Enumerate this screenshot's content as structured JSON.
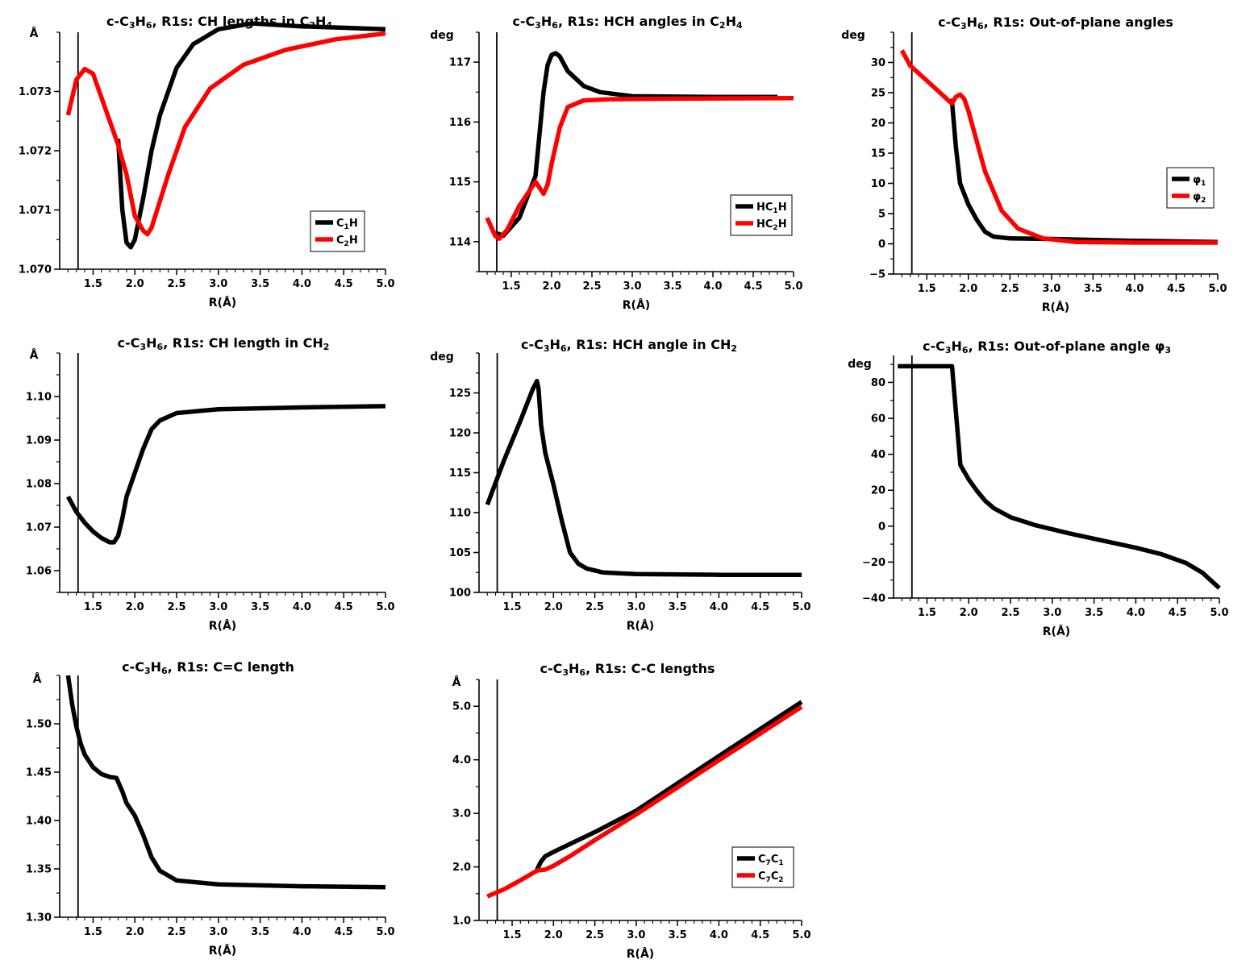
{
  "colors": {
    "black": "#000000",
    "red": "#ff0000"
  },
  "chart_data": [
    {
      "type": "line",
      "title": "c-C3H6, R1s: CH lengths in C2H4",
      "title_parts": [
        "c-C",
        "3",
        "H",
        "6",
        ", R1s: CH lengths in C",
        "2",
        "H",
        "4"
      ],
      "ylabel": "Å",
      "xlabel": "R(Å)",
      "xlim": [
        1.1,
        5.0
      ],
      "ylim": [
        1.07,
        1.074
      ],
      "xticks": [
        "1.5",
        "2.0",
        "2.5",
        "3.0",
        "3.5",
        "4.0",
        "4.5",
        "5.0"
      ],
      "xtick_values": [
        1.5,
        2.0,
        2.5,
        3.0,
        3.5,
        4.0,
        4.5,
        5.0
      ],
      "yticks": [
        "1.070",
        "1.071",
        "1.072",
        "1.073"
      ],
      "ytick_values": [
        1.07,
        1.071,
        1.072,
        1.073
      ],
      "vline": 1.32,
      "legend": {
        "position": "lower-right",
        "entries": [
          {
            "parts": [
              "C",
              "1",
              "H"
            ],
            "color": "#000000"
          },
          {
            "parts": [
              "C",
              "2",
              "H"
            ],
            "color": "#ff0000"
          }
        ]
      },
      "series": [
        {
          "color": "#000000",
          "x": [
            1.8,
            1.85,
            1.9,
            1.95,
            2.0,
            2.1,
            2.2,
            2.3,
            2.5,
            2.7,
            3.0,
            3.4,
            4.0,
            5.0
          ],
          "y": [
            1.0722,
            1.071,
            1.07045,
            1.07037,
            1.0705,
            1.0712,
            1.072,
            1.0726,
            1.0734,
            1.0738,
            1.07405,
            1.07415,
            1.0741,
            1.07405
          ]
        },
        {
          "color": "#ff0000",
          "x": [
            1.2,
            1.3,
            1.4,
            1.5,
            1.6,
            1.8,
            1.9,
            2.0,
            2.1,
            2.15,
            2.2,
            2.4,
            2.6,
            2.9,
            3.3,
            3.8,
            4.4,
            5.0
          ],
          "y": [
            1.0726,
            1.0732,
            1.07338,
            1.0733,
            1.0729,
            1.0721,
            1.0716,
            1.0709,
            1.07065,
            1.07059,
            1.0707,
            1.0716,
            1.0724,
            1.07305,
            1.07345,
            1.0737,
            1.07388,
            1.07398
          ]
        }
      ]
    },
    {
      "type": "line",
      "title": "c-C3H6, R1s: HCH angles in C2H4",
      "title_parts": [
        "c-C",
        "3",
        "H",
        "6",
        ", R1s: HCH angles in C",
        "2",
        "H",
        "4"
      ],
      "ylabel": "deg",
      "xlabel": "R(Å)",
      "xlim": [
        1.1,
        5.0
      ],
      "ylim": [
        113.5,
        117.5
      ],
      "xticks": [
        "1.5",
        "2.0",
        "2.5",
        "3.0",
        "3.5",
        "4.0",
        "4.5",
        "5.0"
      ],
      "xtick_values": [
        1.5,
        2.0,
        2.5,
        3.0,
        3.5,
        4.0,
        4.5,
        5.0
      ],
      "yticks": [
        "114",
        "115",
        "116",
        "117"
      ],
      "ytick_values": [
        114,
        115,
        116,
        117
      ],
      "vline": 1.32,
      "legend": {
        "position": "lower-right",
        "entries": [
          {
            "parts": [
              "HC",
              "1",
              "H"
            ],
            "color": "#000000"
          },
          {
            "parts": [
              "HC",
              "2",
              "H"
            ],
            "color": "#ff0000"
          }
        ]
      },
      "series": [
        {
          "color": "#000000",
          "x": [
            1.3,
            1.4,
            1.6,
            1.8,
            1.85,
            1.9,
            1.95,
            2.0,
            2.05,
            2.1,
            2.2,
            2.4,
            2.6,
            3.0,
            4.0,
            4.8
          ],
          "y": [
            114.15,
            114.1,
            114.4,
            115.1,
            115.8,
            116.5,
            116.95,
            117.12,
            117.15,
            117.1,
            116.85,
            116.6,
            116.5,
            116.43,
            116.42,
            116.42
          ]
        },
        {
          "color": "#ff0000",
          "x": [
            1.2,
            1.3,
            1.35,
            1.45,
            1.6,
            1.8,
            1.85,
            1.9,
            1.95,
            2.0,
            2.1,
            2.2,
            2.4,
            2.7,
            3.5,
            5.0
          ],
          "y": [
            114.4,
            114.1,
            114.05,
            114.2,
            114.6,
            115.0,
            114.9,
            114.8,
            114.95,
            115.3,
            115.9,
            116.25,
            116.36,
            116.38,
            116.39,
            116.4
          ]
        }
      ]
    },
    {
      "type": "line",
      "title": "c-C3H6, R1s: Out-of-plane angles",
      "title_parts": [
        "c-C",
        "3",
        "H",
        "6",
        ", R1s: Out-of-plane angles"
      ],
      "ylabel": "deg",
      "xlabel": "R(Å)",
      "xlim": [
        1.1,
        5.0
      ],
      "ylim": [
        -5,
        35
      ],
      "xticks": [
        "1.5",
        "2.0",
        "2.5",
        "3.0",
        "3.5",
        "4.0",
        "4.5",
        "5.0"
      ],
      "xtick_values": [
        1.5,
        2.0,
        2.5,
        3.0,
        3.5,
        4.0,
        4.5,
        5.0
      ],
      "yticks": [
        "−5",
        "0",
        "5",
        "10",
        "15",
        "20",
        "25",
        "30"
      ],
      "ytick_values": [
        -5,
        0,
        5,
        10,
        15,
        20,
        25,
        30
      ],
      "vline": 1.32,
      "legend": {
        "position": "middle-right",
        "entries": [
          {
            "parts": [
              "φ",
              "1"
            ],
            "color": "#000000"
          },
          {
            "parts": [
              "φ",
              "2"
            ],
            "color": "#ff0000"
          }
        ]
      },
      "series": [
        {
          "color": "#000000",
          "x": [
            1.8,
            1.85,
            1.9,
            2.0,
            2.1,
            2.2,
            2.3,
            2.5,
            3.0,
            4.0,
            5.0
          ],
          "y": [
            24,
            16,
            10,
            6.5,
            4,
            2,
            1.2,
            0.9,
            0.8,
            0.5,
            0.3
          ]
        },
        {
          "color": "#ff0000",
          "x": [
            1.2,
            1.3,
            1.5,
            1.7,
            1.8,
            1.85,
            1.9,
            1.95,
            2.0,
            2.1,
            2.2,
            2.4,
            2.6,
            2.9,
            3.3,
            4.0,
            5.0
          ],
          "y": [
            32,
            29.5,
            27,
            24.5,
            23.2,
            24.3,
            24.7,
            24.0,
            22.0,
            17.0,
            12.0,
            5.5,
            2.5,
            0.9,
            0.3,
            0.2,
            0.2
          ]
        }
      ]
    },
    {
      "type": "line",
      "title": "c-C3H6, R1s: CH length in CH2",
      "title_parts": [
        "c-C",
        "3",
        "H",
        "6",
        ", R1s: CH length in CH",
        "2"
      ],
      "ylabel": "Å",
      "xlabel": "R(Å)",
      "xlim": [
        1.1,
        5.0
      ],
      "ylim": [
        1.055,
        1.11
      ],
      "xticks": [
        "1.5",
        "2.0",
        "2.5",
        "3.0",
        "3.5",
        "4.0",
        "4.5",
        "5.0"
      ],
      "xtick_values": [
        1.5,
        2.0,
        2.5,
        3.0,
        3.5,
        4.0,
        4.5,
        5.0
      ],
      "yticks": [
        "1.06",
        "1.07",
        "1.08",
        "1.09",
        "1.10"
      ],
      "ytick_values": [
        1.06,
        1.07,
        1.08,
        1.09,
        1.1
      ],
      "vline": 1.32,
      "legend": null,
      "series": [
        {
          "color": "#000000",
          "x": [
            1.2,
            1.3,
            1.4,
            1.5,
            1.6,
            1.7,
            1.75,
            1.8,
            1.85,
            1.9,
            2.0,
            2.1,
            2.2,
            2.3,
            2.5,
            3.0,
            4.0,
            5.0
          ],
          "y": [
            1.077,
            1.0735,
            1.071,
            1.069,
            1.0675,
            1.0665,
            1.0665,
            1.068,
            1.072,
            1.077,
            1.0825,
            1.088,
            1.0925,
            1.0945,
            1.0962,
            1.0971,
            1.0975,
            1.0978
          ]
        }
      ]
    },
    {
      "type": "line",
      "title": "c-C3H6, R1s: HCH angle in CH2",
      "title_parts": [
        "c-C",
        "3",
        "H",
        "6",
        ", R1s: HCH angle in CH",
        "2"
      ],
      "ylabel": "deg",
      "xlabel": "R(Å)",
      "xlim": [
        1.1,
        5.0
      ],
      "ylim": [
        100,
        130
      ],
      "xticks": [
        "1.5",
        "2.0",
        "2.5",
        "3.0",
        "3.5",
        "4.0",
        "4.5",
        "5.0"
      ],
      "xtick_values": [
        1.5,
        2.0,
        2.5,
        3.0,
        3.5,
        4.0,
        4.5,
        5.0
      ],
      "yticks": [
        "100",
        "105",
        "110",
        "115",
        "120",
        "125"
      ],
      "ytick_values": [
        100,
        105,
        110,
        115,
        120,
        125
      ],
      "vline": 1.32,
      "legend": null,
      "series": [
        {
          "color": "#000000",
          "x": [
            1.2,
            1.4,
            1.6,
            1.75,
            1.8,
            1.82,
            1.85,
            1.9,
            2.0,
            2.1,
            2.2,
            2.3,
            2.4,
            2.6,
            3.0,
            4.0,
            5.0
          ],
          "y": [
            111,
            116.5,
            121.5,
            125.5,
            126.5,
            125.5,
            121,
            117.5,
            113.5,
            109,
            105,
            103.6,
            103,
            102.5,
            102.3,
            102.2,
            102.2
          ]
        }
      ]
    },
    {
      "type": "line",
      "title": "c-C3H6, R1s: Out-of-plane angle φ3",
      "title_parts": [
        "c-C",
        "3",
        "H",
        "6",
        ", R1s: Out-of-plane angle φ",
        "3"
      ],
      "ylabel": "deg",
      "xlabel": "R(Å)",
      "xlim": [
        1.1,
        5.0
      ],
      "ylim": [
        -40,
        95
      ],
      "xticks": [
        "1.5",
        "2.0",
        "2.5",
        "3.0",
        "3.5",
        "4.0",
        "4.5",
        "5.0"
      ],
      "xtick_values": [
        1.5,
        2.0,
        2.5,
        3.0,
        3.5,
        4.0,
        4.5,
        5.0
      ],
      "yticks": [
        "−40",
        "−20",
        "0",
        "20",
        "40",
        "60",
        "80"
      ],
      "ytick_values": [
        -40,
        -20,
        0,
        20,
        40,
        60,
        80
      ],
      "vline": 1.32,
      "legend": null,
      "series": [
        {
          "color": "#000000",
          "x": [
            1.15,
            1.3,
            1.5,
            1.7,
            1.8,
            1.9,
            2.0,
            2.1,
            2.2,
            2.3,
            2.5,
            2.8,
            3.2,
            3.6,
            4.0,
            4.3,
            4.6,
            4.8,
            5.0
          ],
          "y": [
            89,
            89,
            89,
            89,
            89,
            34,
            26,
            19.5,
            14,
            10,
            5,
            0.5,
            -4,
            -8,
            -12,
            -15.5,
            -20.5,
            -26,
            -34.5
          ]
        }
      ]
    },
    {
      "type": "line",
      "title": "c-C3H6, R1s: C=C length",
      "title_parts": [
        "c-C",
        "3",
        "H",
        "6",
        ", R1s: C=C length"
      ],
      "ylabel": "Å",
      "xlabel": "R(Å)",
      "xlim": [
        1.1,
        5.0
      ],
      "ylim": [
        1.3,
        1.55
      ],
      "xticks": [
        "1.5",
        "2.0",
        "2.5",
        "3.0",
        "3.5",
        "4.0",
        "4.5",
        "5.0"
      ],
      "xtick_values": [
        1.5,
        2.0,
        2.5,
        3.0,
        3.5,
        4.0,
        4.5,
        5.0
      ],
      "yticks": [
        "1.30",
        "1.35",
        "1.40",
        "1.45",
        "1.50"
      ],
      "ytick_values": [
        1.3,
        1.35,
        1.4,
        1.45,
        1.5
      ],
      "vline": 1.32,
      "legend": null,
      "series": [
        {
          "color": "#000000",
          "x": [
            1.2,
            1.25,
            1.3,
            1.35,
            1.4,
            1.5,
            1.6,
            1.7,
            1.78,
            1.8,
            1.85,
            1.9,
            2.0,
            2.1,
            2.2,
            2.3,
            2.5,
            3.0,
            4.0,
            5.0
          ],
          "y": [
            1.55,
            1.52,
            1.497,
            1.48,
            1.468,
            1.455,
            1.448,
            1.445,
            1.444,
            1.44,
            1.43,
            1.418,
            1.405,
            1.385,
            1.362,
            1.348,
            1.338,
            1.334,
            1.332,
            1.331
          ]
        }
      ]
    },
    {
      "type": "line",
      "title": "c-C3H6, R1s: C-C lengths",
      "title_parts": [
        "c-C",
        "3",
        "H",
        "6",
        ", R1s: C-C lengths"
      ],
      "ylabel": "Å",
      "xlabel": "R(Å)",
      "xlim": [
        1.1,
        5.0
      ],
      "ylim": [
        1.0,
        5.5
      ],
      "xticks": [
        "1.5",
        "2.0",
        "2.5",
        "3.0",
        "3.5",
        "4.0",
        "4.5",
        "5.0"
      ],
      "xtick_values": [
        1.5,
        2.0,
        2.5,
        3.0,
        3.5,
        4.0,
        4.5,
        5.0
      ],
      "yticks": [
        "1.0",
        "2.0",
        "3.0",
        "4.0",
        "5.0"
      ],
      "ytick_values": [
        1.0,
        2.0,
        3.0,
        4.0,
        5.0
      ],
      "vline": 1.32,
      "legend": {
        "position": "lower-right",
        "entries": [
          {
            "parts": [
              "C",
              "7",
              "C",
              "1"
            ],
            "color": "#000000"
          },
          {
            "parts": [
              "C",
              "7",
              "C",
              "2"
            ],
            "color": "#ff0000"
          }
        ]
      },
      "series": [
        {
          "color": "#000000",
          "x": [
            1.8,
            1.85,
            1.9,
            2.0,
            2.5,
            3.0,
            4.0,
            5.0
          ],
          "y": [
            1.95,
            2.1,
            2.2,
            2.28,
            2.65,
            3.05,
            4.07,
            5.08
          ]
        },
        {
          "color": "#ff0000",
          "x": [
            1.2,
            1.4,
            1.6,
            1.8,
            1.9,
            2.0,
            2.2,
            2.5,
            3.0,
            4.0,
            5.0
          ],
          "y": [
            1.45,
            1.58,
            1.75,
            1.93,
            1.95,
            2.02,
            2.2,
            2.5,
            2.98,
            3.99,
            4.99
          ]
        }
      ]
    }
  ]
}
